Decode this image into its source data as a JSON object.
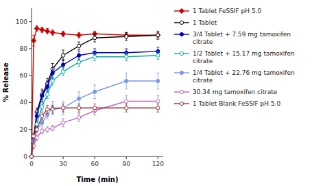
{
  "chart_data": {
    "type": "line",
    "title": "",
    "x_label": "Time (min)",
    "y_label": "% Release",
    "xlim": [
      0,
      125
    ],
    "ylim": [
      0,
      110
    ],
    "xticks": [
      0,
      30,
      60,
      90,
      120
    ],
    "yticks": [
      0,
      20,
      40,
      60,
      80,
      100
    ],
    "grid": false,
    "legend": "right",
    "x": [
      0,
      2,
      5,
      10,
      15,
      20,
      30,
      45,
      60,
      90,
      120
    ],
    "series": [
      {
        "name": "1 Tablet FeSSIF pH 5.0",
        "color": "#cc0000",
        "marker": "diamond",
        "values": [
          0,
          86,
          95,
          94,
          93,
          92,
          91,
          90,
          91,
          90,
          90
        ],
        "errors": [
          0,
          4,
          2,
          2,
          2,
          2,
          2,
          2,
          2,
          2,
          2
        ]
      },
      {
        "name": "1 Tablet",
        "color": "#000000",
        "marker": "circle-open",
        "values": [
          0,
          14,
          33,
          46,
          54,
          65,
          75,
          82,
          88,
          89,
          90
        ],
        "errors": [
          0,
          2,
          3,
          4,
          4,
          4,
          4,
          3,
          3,
          3,
          3
        ]
      },
      {
        "name": "3/4 Tablet + 7.59 mg tamoxifen\ncitrate",
        "color": "#0000bb",
        "marker": "circle",
        "values": [
          0,
          13,
          30,
          45,
          52,
          62,
          68,
          75,
          77,
          77,
          78
        ],
        "errors": [
          0,
          2,
          3,
          4,
          4,
          4,
          4,
          3,
          3,
          3,
          3
        ]
      },
      {
        "name": "1/2 Tablet + 15.17 mg tamoxifen\ncitrate",
        "color": "#00aaaa",
        "marker": "circle-open",
        "values": [
          0,
          11,
          24,
          37,
          46,
          56,
          63,
          70,
          74,
          74,
          75
        ],
        "errors": [
          0,
          2,
          2,
          3,
          3,
          3,
          3,
          3,
          3,
          3,
          3
        ]
      },
      {
        "name": "1/4 Tablet + 22.76 mg tamoxifen\ncitrate",
        "color": "#7799ee",
        "marker": "circle",
        "values": [
          0,
          12,
          20,
          25,
          31,
          36,
          36,
          43,
          48,
          56,
          56
        ],
        "errors": [
          0,
          2,
          2,
          3,
          3,
          5,
          5,
          5,
          5,
          6,
          6
        ]
      },
      {
        "name": "30.34 mg tamoxifen citrate",
        "color": "#bb66bb",
        "marker": "circle-open",
        "values": [
          0,
          8,
          14,
          19,
          20,
          21,
          25,
          29,
          34,
          41,
          41
        ],
        "errors": [
          0,
          2,
          2,
          2,
          2,
          2,
          3,
          3,
          3,
          4,
          4
        ]
      },
      {
        "name": "1 Tablet Blank FeSSIF pH 5.0",
        "color": "#993333",
        "marker": "circle-open",
        "values": [
          0,
          15,
          20,
          30,
          35,
          35,
          36,
          36,
          36,
          36,
          36
        ],
        "errors": [
          0,
          2,
          2,
          3,
          3,
          3,
          3,
          3,
          3,
          3,
          3
        ]
      }
    ]
  }
}
